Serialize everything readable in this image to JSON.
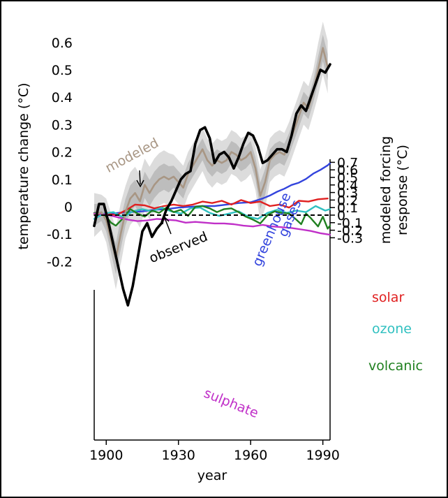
{
  "chart_data": {
    "type": "line",
    "xlabel": "year",
    "xlim": [
      1895,
      1993
    ],
    "x_ticks": [
      {
        "value": 1900,
        "label": "1900"
      },
      {
        "value": 1930,
        "label": "1930"
      },
      {
        "value": 1960,
        "label": "1960"
      },
      {
        "value": 1990,
        "label": "1990"
      }
    ],
    "top_panel": {
      "ylabel": "temperature change (°C)",
      "ylim": [
        -0.24,
        0.65
      ],
      "y_ticks": [
        {
          "value": 0.6,
          "label": "0.6"
        },
        {
          "value": 0.5,
          "label": "0.5"
        },
        {
          "value": 0.4,
          "label": "0.4"
        },
        {
          "value": 0.3,
          "label": "0.3"
        },
        {
          "value": 0.2,
          "label": "0.2"
        },
        {
          "value": 0.1,
          "label": "0.1"
        },
        {
          "value": 0,
          "label": "0"
        },
        {
          "value": -0.1,
          "label": "-0.1"
        },
        {
          "value": -0.2,
          "label": "-0.2"
        }
      ],
      "series": [
        {
          "name": "modeled",
          "color": "#a89684",
          "x": [
            1895,
            1898,
            1900,
            1902,
            1904,
            1906,
            1908,
            1910,
            1912,
            1914,
            1916,
            1918,
            1920,
            1922,
            1924,
            1926,
            1928,
            1930,
            1932,
            1934,
            1936,
            1938,
            1940,
            1942,
            1944,
            1946,
            1948,
            1950,
            1952,
            1954,
            1956,
            1958,
            1960,
            1962,
            1964,
            1966,
            1968,
            1970,
            1972,
            1974,
            1976,
            1978,
            1980,
            1982,
            1984,
            1986,
            1988,
            1990,
            1992
          ],
          "y": [
            -0.03,
            -0.02,
            -0.05,
            -0.12,
            -0.19,
            -0.1,
            -0.02,
            0.03,
            0.05,
            0.02,
            0.08,
            0.05,
            0.08,
            0.1,
            0.11,
            0.1,
            0.11,
            0.09,
            0.07,
            0.12,
            0.15,
            0.18,
            0.21,
            0.17,
            0.15,
            0.17,
            0.16,
            0.17,
            0.2,
            0.19,
            0.17,
            0.18,
            0.2,
            0.14,
            0.04,
            0.09,
            0.17,
            0.19,
            0.2,
            0.19,
            0.23,
            0.28,
            0.33,
            0.38,
            0.36,
            0.42,
            0.5,
            0.58,
            0.51
          ],
          "band": [
            0.05,
            0.04,
            0.05,
            0.06,
            0.07,
            0.07,
            0.06,
            0.06,
            0.06,
            0.06,
            0.06,
            0.06,
            0.06,
            0.06,
            0.06,
            0.06,
            0.05,
            0.05,
            0.05,
            0.05,
            0.05,
            0.05,
            0.05,
            0.05,
            0.05,
            0.05,
            0.05,
            0.05,
            0.05,
            0.05,
            0.05,
            0.05,
            0.05,
            0.05,
            0.06,
            0.06,
            0.05,
            0.05,
            0.05,
            0.05,
            0.05,
            0.05,
            0.05,
            0.05,
            0.05,
            0.05,
            0.06,
            0.06,
            0.06
          ]
        },
        {
          "name": "observed",
          "color": "#000000",
          "x": [
            1895,
            1897,
            1899,
            1901,
            1903,
            1905,
            1907,
            1909,
            1911,
            1913,
            1915,
            1917,
            1919,
            1921,
            1923,
            1925,
            1927,
            1929,
            1931,
            1933,
            1935,
            1937,
            1939,
            1941,
            1943,
            1945,
            1947,
            1949,
            1951,
            1953,
            1955,
            1957,
            1959,
            1961,
            1963,
            1965,
            1967,
            1969,
            1971,
            1973,
            1975,
            1977,
            1979,
            1981,
            1983,
            1985,
            1987,
            1989,
            1991,
            1993
          ],
          "y": [
            -0.07,
            0.01,
            0.01,
            -0.06,
            -0.14,
            -0.22,
            -0.3,
            -0.36,
            -0.29,
            -0.19,
            -0.09,
            -0.06,
            -0.11,
            -0.08,
            -0.06,
            -0.01,
            0.02,
            0.06,
            0.1,
            0.12,
            0.13,
            0.23,
            0.28,
            0.29,
            0.25,
            0.16,
            0.19,
            0.2,
            0.18,
            0.14,
            0.18,
            0.23,
            0.27,
            0.26,
            0.22,
            0.16,
            0.17,
            0.19,
            0.21,
            0.21,
            0.2,
            0.26,
            0.34,
            0.37,
            0.35,
            0.4,
            0.45,
            0.5,
            0.49,
            0.52
          ]
        }
      ]
    },
    "bottom_panel": {
      "ylabel": "modeled forcing response (°C)",
      "ylim": [
        -0.3,
        0.72
      ],
      "y_ticks": [
        {
          "value": 0.7,
          "label": "0.7"
        },
        {
          "value": 0.6,
          "label": "0.6"
        },
        {
          "value": 0.5,
          "label": "0.5"
        },
        {
          "value": 0.4,
          "label": "0.4"
        },
        {
          "value": 0.3,
          "label": "0.3"
        },
        {
          "value": 0.2,
          "label": "0.2"
        },
        {
          "value": 0.1,
          "label": "0.1"
        },
        {
          "value": 0,
          "label": "0"
        },
        {
          "value": -0.1,
          "label": "-0.1"
        },
        {
          "value": -0.2,
          "label": "-0.2"
        },
        {
          "value": -0.3,
          "label": "-0.3"
        }
      ],
      "zero_line": {
        "style": "dashed",
        "value": 0
      },
      "series": [
        {
          "name": "greenhouse gases",
          "color": "#3344dd",
          "x": [
            1895,
            1900,
            1905,
            1910,
            1915,
            1920,
            1925,
            1930,
            1935,
            1940,
            1945,
            1950,
            1955,
            1960,
            1965,
            1968,
            1971,
            1974,
            1977,
            1980,
            1983,
            1986,
            1989,
            1992,
            1993
          ],
          "y": [
            0,
            0.01,
            0.03,
            0.04,
            0.05,
            0.07,
            0.08,
            0.1,
            0.11,
            0.12,
            0.12,
            0.14,
            0.16,
            0.17,
            0.22,
            0.26,
            0.31,
            0.35,
            0.4,
            0.43,
            0.48,
            0.55,
            0.6,
            0.66,
            0.69
          ]
        },
        {
          "name": "solar",
          "color": "#e02020",
          "x": [
            1895,
            1900,
            1904,
            1908,
            1912,
            1916,
            1920,
            1924,
            1928,
            1932,
            1936,
            1940,
            1944,
            1948,
            1952,
            1956,
            1960,
            1964,
            1968,
            1972,
            1976,
            1980,
            1984,
            1988,
            1992
          ],
          "y": [
            0.01,
            0.02,
            0.0,
            0.06,
            0.14,
            0.13,
            0.09,
            0.12,
            0.14,
            0.12,
            0.14,
            0.18,
            0.16,
            0.19,
            0.14,
            0.2,
            0.16,
            0.18,
            0.12,
            0.14,
            0.1,
            0.19,
            0.18,
            0.21,
            0.22
          ]
        },
        {
          "name": "ozone",
          "color": "#30c0c0",
          "x": [
            1895,
            1899,
            1903,
            1907,
            1911,
            1915,
            1919,
            1923,
            1927,
            1931,
            1935,
            1939,
            1943,
            1947,
            1951,
            1955,
            1959,
            1963,
            1967,
            1971,
            1975,
            1979,
            1983,
            1987,
            1991,
            1993
          ],
          "y": [
            -0.05,
            0.02,
            0.04,
            -0.03,
            0.05,
            0.08,
            0.05,
            0.1,
            0.05,
            0.02,
            0.09,
            0.1,
            0.03,
            -0.01,
            0.02,
            0.05,
            -0.02,
            -0.05,
            0.03,
            0.07,
            0.03,
            0.06,
            0.04,
            0.12,
            0.06,
            0.08
          ]
        },
        {
          "name": "volcanic",
          "color": "#208020",
          "x": [
            1895,
            1898,
            1900,
            1902,
            1904,
            1907,
            1910,
            1913,
            1916,
            1919,
            1922,
            1925,
            1928,
            1931,
            1934,
            1937,
            1940,
            1943,
            1946,
            1949,
            1952,
            1955,
            1958,
            1961,
            1964,
            1967,
            1970,
            1973,
            1976,
            1979,
            1981,
            1983,
            1985,
            1988,
            1990,
            1992,
            1993
          ],
          "y": [
            0.03,
            0.03,
            -0.02,
            -0.1,
            -0.14,
            -0.04,
            0.08,
            0.02,
            -0.02,
            0.06,
            0.03,
            0.1,
            0.04,
            0.07,
            -0.01,
            0.11,
            0.12,
            0.09,
            0.04,
            0.08,
            0.09,
            0.04,
            -0.02,
            -0.06,
            -0.11,
            0.0,
            0.05,
            0.03,
            0.02,
            -0.06,
            -0.12,
            0.02,
            -0.04,
            -0.15,
            -0.02,
            -0.18,
            -0.14
          ]
        },
        {
          "name": "sulphate",
          "color": "#c030c8",
          "x": [
            1895,
            1898,
            1901,
            1905,
            1909,
            1913,
            1917,
            1921,
            1925,
            1929,
            1933,
            1937,
            1941,
            1945,
            1949,
            1953,
            1957,
            1961,
            1965,
            1969,
            1973,
            1977,
            1981,
            1985,
            1989,
            1993
          ],
          "y": [
            0.02,
            0.02,
            0.0,
            -0.03,
            -0.06,
            -0.08,
            -0.07,
            -0.05,
            -0.06,
            -0.07,
            -0.1,
            -0.09,
            -0.1,
            -0.11,
            -0.11,
            -0.12,
            -0.14,
            -0.15,
            -0.13,
            -0.15,
            -0.16,
            -0.17,
            -0.19,
            -0.21,
            -0.24,
            -0.26
          ]
        }
      ]
    },
    "annotations": {
      "modeled": "modeled",
      "observed": "observed",
      "greenhouse": "greenhouse",
      "gases": "gases",
      "solar": "solar",
      "ozone": "ozone",
      "volcanic": "volcanic",
      "sulphate": "sulphate"
    }
  }
}
